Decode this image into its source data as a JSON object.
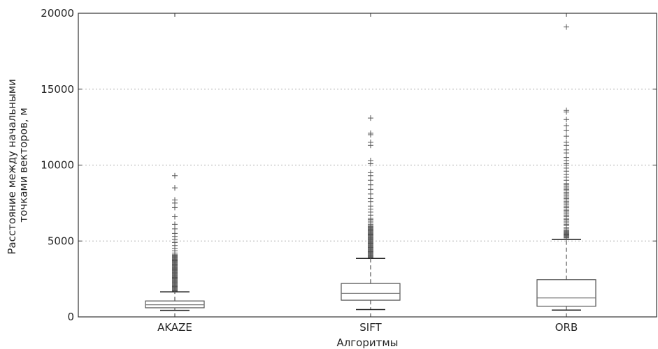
{
  "chart_data": {
    "type": "box",
    "title": "",
    "xlabel": "Алгоритмы",
    "ylabel_lines": [
      "Расстояние между начальными",
      "точками векторов, м"
    ],
    "ylim": [
      0,
      20000
    ],
    "yticks": [
      0,
      5000,
      10000,
      15000,
      20000
    ],
    "grid": "horizontal-dotted",
    "colors": {
      "box": "#555555",
      "median": "#777777",
      "grid": "#b0b0b0",
      "frame": "#333333"
    },
    "categories": [
      "AKAZE",
      "SIFT",
      "ORB"
    ],
    "boxes": [
      {
        "name": "AKAZE",
        "whisker_low": 430,
        "q1": 600,
        "median": 800,
        "q3": 1050,
        "whisker_high": 1650,
        "outliers": [
          1700,
          1750,
          1800,
          1850,
          1900,
          1950,
          2000,
          2050,
          2100,
          2150,
          2200,
          2250,
          2300,
          2350,
          2400,
          2450,
          2500,
          2550,
          2600,
          2650,
          2700,
          2750,
          2800,
          2850,
          2900,
          2950,
          3000,
          3050,
          3100,
          3150,
          3200,
          3250,
          3300,
          3350,
          3400,
          3450,
          3500,
          3550,
          3600,
          3650,
          3700,
          3750,
          3800,
          3850,
          3900,
          3950,
          4000,
          4050,
          4100,
          4200,
          4350,
          4500,
          4700,
          4900,
          5100,
          5300,
          5500,
          5800,
          6100,
          6600,
          7200,
          7500,
          7700,
          8500,
          9300
        ]
      },
      {
        "name": "SIFT",
        "whisker_low": 480,
        "q1": 1100,
        "median": 1550,
        "q3": 2200,
        "whisker_high": 3850,
        "outliers": [
          3900,
          3950,
          4000,
          4050,
          4100,
          4150,
          4200,
          4250,
          4300,
          4350,
          4400,
          4450,
          4500,
          4550,
          4600,
          4650,
          4700,
          4750,
          4800,
          4850,
          4900,
          4950,
          5000,
          5050,
          5100,
          5150,
          5200,
          5250,
          5300,
          5350,
          5400,
          5450,
          5500,
          5550,
          5600,
          5650,
          5700,
          5750,
          5800,
          5850,
          5900,
          5950,
          6000,
          6100,
          6200,
          6300,
          6400,
          6500,
          6700,
          6900,
          7100,
          7300,
          7600,
          7800,
          8100,
          8400,
          8700,
          9000,
          9300,
          9500,
          10100,
          10300,
          11300,
          11500,
          12000,
          12100,
          13100
        ]
      },
      {
        "name": "ORB",
        "whisker_low": 450,
        "q1": 700,
        "median": 1250,
        "q3": 2450,
        "whisker_high": 5100,
        "outliers": [
          5200,
          5250,
          5300,
          5350,
          5400,
          5450,
          5500,
          5550,
          5600,
          5650,
          5700,
          5800,
          5900,
          6000,
          6100,
          6200,
          6300,
          6400,
          6500,
          6600,
          6700,
          6800,
          6900,
          7000,
          7100,
          7200,
          7300,
          7400,
          7500,
          7600,
          7700,
          7800,
          7900,
          8000,
          8100,
          8200,
          8300,
          8400,
          8500,
          8600,
          8700,
          8800,
          9000,
          9200,
          9400,
          9600,
          9800,
          10000,
          10100,
          10300,
          10500,
          10800,
          11000,
          11300,
          11500,
          11900,
          12300,
          12600,
          13000,
          13500,
          13600,
          19100
        ]
      }
    ]
  }
}
